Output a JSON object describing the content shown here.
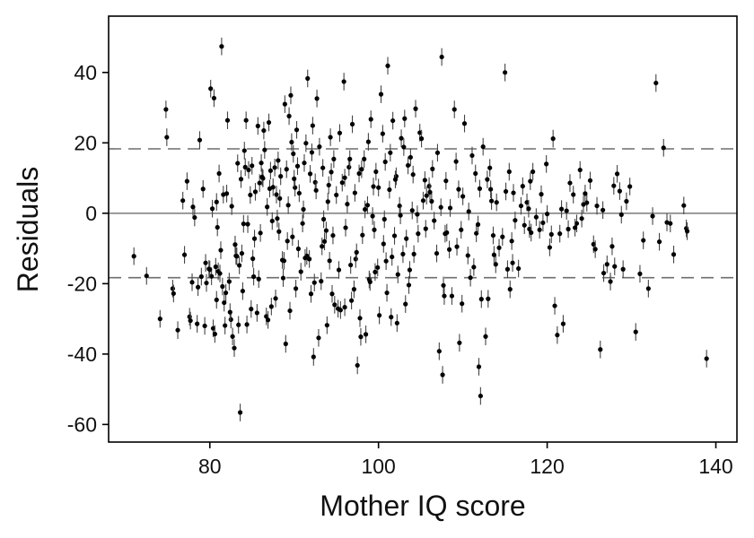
{
  "chart_data": {
    "type": "scatter",
    "title": "",
    "xlabel": "Mother IQ score",
    "ylabel": "Residuals",
    "xlim": [
      68,
      142.5
    ],
    "ylim": [
      -65,
      56
    ],
    "xticks": [
      "80",
      "100",
      "120",
      "140"
    ],
    "yticks": [
      "40",
      "20",
      "0",
      "-20",
      "-40",
      "-60"
    ],
    "reference_lines": {
      "solid": 0,
      "dashed": [
        18.3,
        -18.3
      ]
    },
    "grid": false,
    "legend": "none",
    "error_bars": "vertical, half-length about 2.5",
    "colors": {
      "points": "#000000",
      "axes": "#000000",
      "zero_line": "#7a7a7a",
      "dashed_lines": "#6e6e6e"
    },
    "points": [
      [
        71.0,
        -12.2
      ],
      [
        72.5,
        -17.8
      ],
      [
        74.1,
        -30.0
      ],
      [
        74.8,
        29.5
      ],
      [
        74.9,
        21.6
      ],
      [
        75.6,
        -21.4
      ],
      [
        75.7,
        -22.8
      ],
      [
        76.2,
        -33.2
      ],
      [
        76.8,
        3.6
      ],
      [
        77.0,
        -11.8
      ],
      [
        77.3,
        9.1
      ],
      [
        77.6,
        -29.4
      ],
      [
        77.7,
        -30.5
      ],
      [
        77.9,
        -19.6
      ],
      [
        78.0,
        1.8
      ],
      [
        78.2,
        -1.2
      ],
      [
        78.5,
        -31.4
      ],
      [
        78.8,
        20.8
      ],
      [
        79.2,
        6.9
      ],
      [
        79.4,
        -32.0
      ],
      [
        79.5,
        -14.1
      ],
      [
        79.6,
        -19.8
      ],
      [
        79.9,
        -15.8
      ],
      [
        80.1,
        35.4
      ],
      [
        80.2,
        -17.9
      ],
      [
        80.3,
        1.3
      ],
      [
        80.4,
        -32.7
      ],
      [
        80.5,
        32.7
      ],
      [
        80.6,
        -34.3
      ],
      [
        80.7,
        -15.2
      ],
      [
        80.8,
        3.2
      ],
      [
        80.9,
        -4.0
      ],
      [
        81.0,
        -16.5
      ],
      [
        81.1,
        11.3
      ],
      [
        81.2,
        -17.1
      ],
      [
        81.4,
        47.4
      ],
      [
        81.5,
        -20.8
      ],
      [
        81.6,
        5.3
      ],
      [
        81.8,
        -31.9
      ],
      [
        81.9,
        -22.6
      ],
      [
        82.1,
        26.4
      ],
      [
        82.3,
        -19.4
      ],
      [
        82.5,
        -30.2
      ],
      [
        82.6,
        2.0
      ],
      [
        82.7,
        -35.0
      ],
      [
        82.9,
        -38.3
      ],
      [
        83.0,
        -8.9
      ],
      [
        83.1,
        -12.1
      ],
      [
        83.3,
        14.2
      ],
      [
        83.4,
        -31.7
      ],
      [
        83.5,
        -14.8
      ],
      [
        83.6,
        -56.6
      ],
      [
        83.7,
        9.7
      ],
      [
        83.8,
        -11.4
      ],
      [
        84.0,
        -3.0
      ],
      [
        84.1,
        17.8
      ],
      [
        84.3,
        26.4
      ],
      [
        84.4,
        -31.6
      ],
      [
        84.6,
        12.3
      ],
      [
        84.8,
        5.2
      ],
      [
        85.0,
        13.5
      ],
      [
        85.1,
        -12.9
      ],
      [
        85.2,
        -18.0
      ],
      [
        85.4,
        6.1
      ],
      [
        85.6,
        -28.3
      ],
      [
        85.7,
        24.8
      ],
      [
        85.9,
        8.6
      ],
      [
        86.1,
        14.3
      ],
      [
        86.3,
        9.9
      ],
      [
        86.5,
        18.0
      ],
      [
        86.7,
        -29.3
      ],
      [
        86.8,
        1.8
      ],
      [
        87.0,
        25.8
      ],
      [
        87.1,
        7.0
      ],
      [
        87.2,
        12.1
      ],
      [
        87.3,
        -26.5
      ],
      [
        87.5,
        7.4
      ],
      [
        87.7,
        13.0
      ],
      [
        87.9,
        5.3
      ],
      [
        88.0,
        -1.5
      ],
      [
        88.2,
        -5.2
      ],
      [
        88.4,
        10.5
      ],
      [
        88.6,
        -13.3
      ],
      [
        88.7,
        -18.4
      ],
      [
        88.9,
        31.0
      ],
      [
        89.0,
        -37.1
      ],
      [
        89.1,
        12.5
      ],
      [
        89.3,
        2.3
      ],
      [
        89.4,
        27.6
      ],
      [
        89.6,
        33.5
      ],
      [
        89.8,
        -6.7
      ],
      [
        89.9,
        16.9
      ],
      [
        90.1,
        7.3
      ],
      [
        90.3,
        23.7
      ],
      [
        90.5,
        -10.1
      ],
      [
        90.6,
        5.7
      ],
      [
        90.8,
        -16.6
      ],
      [
        91.0,
        -2.9
      ],
      [
        91.2,
        14.3
      ],
      [
        91.4,
        19.9
      ],
      [
        91.5,
        -12.1
      ],
      [
        91.6,
        38.3
      ],
      [
        91.8,
        -13.0
      ],
      [
        92.0,
        -22.9
      ],
      [
        92.2,
        24.9
      ],
      [
        92.3,
        -40.8
      ],
      [
        92.5,
        8.8
      ],
      [
        92.7,
        32.6
      ],
      [
        92.9,
        -35.4
      ],
      [
        93.0,
        18.9
      ],
      [
        93.2,
        -19.3
      ],
      [
        93.4,
        12.9
      ],
      [
        93.6,
        -8.0
      ],
      [
        93.8,
        -4.9
      ],
      [
        94.0,
        3.3
      ],
      [
        94.2,
        -13.5
      ],
      [
        94.4,
        11.7
      ],
      [
        94.6,
        -6.3
      ],
      [
        94.8,
        -26.0
      ],
      [
        95.0,
        5.2
      ],
      [
        95.2,
        -27.1
      ],
      [
        95.4,
        22.8
      ],
      [
        95.5,
        -27.5
      ],
      [
        95.7,
        8.7
      ],
      [
        95.9,
        37.4
      ],
      [
        96.0,
        -26.7
      ],
      [
        96.3,
        2.6
      ],
      [
        96.5,
        13.1
      ],
      [
        96.7,
        -14.7
      ],
      [
        96.9,
        25.3
      ],
      [
        97.1,
        -21.6
      ],
      [
        97.3,
        -13.0
      ],
      [
        97.5,
        -43.2
      ],
      [
        97.7,
        11.3
      ],
      [
        97.9,
        -35.1
      ],
      [
        98.1,
        -6.2
      ],
      [
        98.3,
        15.4
      ],
      [
        98.5,
        -34.4
      ],
      [
        98.7,
        2.3
      ],
      [
        98.9,
        -18.8
      ],
      [
        99.1,
        26.7
      ],
      [
        99.3,
        -0.8
      ],
      [
        99.5,
        -4.7
      ],
      [
        99.7,
        11.8
      ],
      [
        99.9,
        -15.4
      ],
      [
        100.1,
        -29.0
      ],
      [
        100.3,
        33.8
      ],
      [
        100.5,
        22.6
      ],
      [
        100.7,
        -1.7
      ],
      [
        100.9,
        -13.6
      ],
      [
        101.1,
        41.9
      ],
      [
        101.3,
        6.7
      ],
      [
        101.5,
        -29.5
      ],
      [
        101.7,
        26.3
      ],
      [
        101.9,
        -6.4
      ],
      [
        102.1,
        10.5
      ],
      [
        102.3,
        -17.4
      ],
      [
        102.5,
        2.1
      ],
      [
        102.7,
        21.3
      ],
      [
        102.9,
        -11.6
      ],
      [
        103.1,
        26.9
      ],
      [
        103.3,
        -7.2
      ],
      [
        103.6,
        -20.4
      ],
      [
        103.8,
        15.9
      ],
      [
        104.0,
        0.8
      ],
      [
        104.2,
        -11.6
      ],
      [
        104.4,
        29.7
      ],
      [
        104.7,
        -5.8
      ],
      [
        104.9,
        22.9
      ],
      [
        105.3,
        3.6
      ],
      [
        105.7,
        5.0
      ],
      [
        106.0,
        7.7
      ],
      [
        106.3,
        3.4
      ],
      [
        106.6,
        -2.1
      ],
      [
        106.9,
        -11.4
      ],
      [
        107.2,
        -39.2
      ],
      [
        107.5,
        44.4
      ],
      [
        107.6,
        -45.9
      ],
      [
        107.8,
        -23.5
      ],
      [
        108.1,
        -5.5
      ],
      [
        108.4,
        -10.3
      ],
      [
        108.7,
        -23.5
      ],
      [
        109.0,
        29.5
      ],
      [
        109.3,
        -9.5
      ],
      [
        109.6,
        -36.8
      ],
      [
        109.9,
        -25.7
      ],
      [
        110.2,
        25.5
      ],
      [
        110.6,
        -12.0
      ],
      [
        110.9,
        -18.3
      ],
      [
        111.3,
        -15.3
      ],
      [
        111.6,
        -5.7
      ],
      [
        111.9,
        -43.6
      ],
      [
        112.1,
        -51.9
      ],
      [
        112.4,
        18.9
      ],
      [
        112.7,
        -35.0
      ],
      [
        113.0,
        -24.3
      ],
      [
        113.3,
        6.8
      ],
      [
        113.6,
        -6.3
      ],
      [
        113.9,
        -14.5
      ],
      [
        114.3,
        -9.8
      ],
      [
        114.7,
        -6.7
      ],
      [
        115.0,
        40.0
      ],
      [
        115.3,
        -15.9
      ],
      [
        115.6,
        -21.6
      ],
      [
        115.9,
        -14.1
      ],
      [
        116.2,
        -2.0
      ],
      [
        116.6,
        -15.7
      ],
      [
        116.9,
        2.1
      ],
      [
        117.3,
        -3.4
      ],
      [
        117.6,
        3.1
      ],
      [
        117.9,
        -4.5
      ],
      [
        118.3,
        11.8
      ],
      [
        118.7,
        -1.1
      ],
      [
        119.1,
        -4.7
      ],
      [
        119.5,
        -2.7
      ],
      [
        119.9,
        14.0
      ],
      [
        120.3,
        -9.7
      ],
      [
        120.7,
        21.2
      ],
      [
        120.9,
        -26.3
      ],
      [
        121.2,
        -34.6
      ],
      [
        121.5,
        -5.8
      ],
      [
        121.9,
        -31.4
      ],
      [
        122.3,
        0.7
      ],
      [
        122.7,
        8.6
      ],
      [
        123.1,
        5.3
      ],
      [
        123.5,
        -2.9
      ],
      [
        123.9,
        12.3
      ],
      [
        124.3,
        2.5
      ],
      [
        124.7,
        3.0
      ],
      [
        125.1,
        9.3
      ],
      [
        125.5,
        -8.8
      ],
      [
        125.9,
        2.1
      ],
      [
        126.3,
        -38.7
      ],
      [
        126.7,
        -17.0
      ],
      [
        127.1,
        -14.5
      ],
      [
        127.5,
        -19.4
      ],
      [
        127.9,
        7.8
      ],
      [
        128.3,
        11.2
      ],
      [
        128.6,
        6.3
      ],
      [
        129.0,
        -15.9
      ],
      [
        129.4,
        3.4
      ],
      [
        129.8,
        7.6
      ],
      [
        130.5,
        -33.7
      ],
      [
        131.0,
        -17.2
      ],
      [
        131.4,
        -7.7
      ],
      [
        132.0,
        -21.4
      ],
      [
        132.5,
        -0.8
      ],
      [
        132.9,
        37.0
      ],
      [
        133.3,
        -8.1
      ],
      [
        133.8,
        18.6
      ],
      [
        134.2,
        -2.6
      ],
      [
        134.6,
        -2.9
      ],
      [
        135.0,
        -11.7
      ],
      [
        136.2,
        2.2
      ],
      [
        136.5,
        -4.3
      ],
      [
        136.6,
        -5.1
      ],
      [
        138.9,
        -41.3
      ],
      [
        84.5,
        -3.1
      ],
      [
        86.0,
        -5.6
      ],
      [
        88.8,
        -13.5
      ],
      [
        91.1,
        1.1
      ],
      [
        93.5,
        -1.7
      ],
      [
        96.1,
        -4.1
      ],
      [
        98.4,
        1.1
      ],
      [
        100.6,
        -8.7
      ],
      [
        102.6,
        -0.6
      ],
      [
        104.6,
        -0.3
      ],
      [
        106.4,
        12.6
      ],
      [
        108.5,
        1.5
      ],
      [
        110.7,
        0.5
      ],
      [
        112.9,
        9.6
      ],
      [
        115.1,
        6.2
      ],
      [
        117.1,
        7.7
      ],
      [
        119.3,
        5.4
      ],
      [
        121.7,
        1.2
      ],
      [
        124.1,
        -1.5
      ],
      [
        126.6,
        0.9
      ],
      [
        128.8,
        -0.4
      ],
      [
        82.0,
        5.6
      ],
      [
        84.2,
        13.1
      ],
      [
        86.4,
        23.5
      ],
      [
        88.3,
        4.2
      ],
      [
        90.4,
        13.4
      ],
      [
        92.6,
        6.5
      ],
      [
        94.7,
        15.4
      ],
      [
        97.2,
        5.8
      ],
      [
        99.4,
        7.6
      ],
      [
        101.4,
        17.2
      ],
      [
        103.5,
        13.6
      ],
      [
        105.5,
        9.4
      ],
      [
        107.4,
        1.7
      ],
      [
        109.5,
        6.8
      ],
      [
        111.5,
        11.3
      ],
      [
        113.4,
        3.5
      ],
      [
        115.5,
        11.8
      ],
      [
        117.8,
        1.3
      ],
      [
        120.0,
        -0.2
      ],
      [
        122.5,
        -4.5
      ],
      [
        124.5,
        5.6
      ],
      [
        127.7,
        -9.4
      ],
      [
        80.0,
        -16.0
      ],
      [
        81.3,
        -10.5
      ],
      [
        83.2,
        -12.2
      ],
      [
        85.3,
        -7.2
      ],
      [
        87.4,
        -2.2
      ],
      [
        89.2,
        -7.9
      ],
      [
        91.3,
        -12.7
      ],
      [
        93.3,
        -9.4
      ],
      [
        95.3,
        -16.1
      ],
      [
        97.4,
        -11.1
      ],
      [
        99.6,
        -16.7
      ],
      [
        101.6,
        -12.4
      ],
      [
        103.7,
        -16.1
      ],
      [
        105.6,
        -4.4
      ],
      [
        107.9,
        -5.8
      ],
      [
        109.8,
        -4.7
      ],
      [
        111.8,
        -3.2
      ],
      [
        113.7,
        -11.8
      ],
      [
        115.8,
        -7.9
      ],
      [
        118.1,
        -5.5
      ],
      [
        120.5,
        -6.0
      ],
      [
        123.3,
        -4.1
      ],
      [
        125.7,
        -10.2
      ],
      [
        128.0,
        -15.1
      ],
      [
        89.7,
        20.2
      ],
      [
        92.1,
        17.3
      ],
      [
        94.3,
        21.6
      ],
      [
        96.6,
        15.4
      ],
      [
        98.8,
        20.3
      ],
      [
        100.8,
        14.6
      ],
      [
        103.0,
        18.8
      ],
      [
        105.1,
        21.2
      ],
      [
        107.0,
        17.2
      ],
      [
        109.2,
        14.7
      ],
      [
        111.1,
        16.4
      ],
      [
        113.2,
        12.9
      ],
      [
        86.2,
        10.3
      ],
      [
        88.1,
        15.0
      ],
      [
        90.0,
        9.8
      ],
      [
        91.9,
        11.2
      ],
      [
        94.1,
        8.0
      ],
      [
        96.0,
        10.1
      ],
      [
        98.0,
        12.5
      ],
      [
        100.0,
        7.3
      ],
      [
        102.0,
        9.6
      ],
      [
        104.1,
        11.0
      ],
      [
        106.1,
        6.0
      ],
      [
        108.0,
        9.2
      ],
      [
        110.0,
        4.8
      ],
      [
        112.0,
        7.0
      ],
      [
        114.0,
        3.1
      ],
      [
        116.0,
        5.8
      ],
      [
        118.0,
        9.1
      ],
      [
        81.7,
        -25.4
      ],
      [
        83.9,
        -22.1
      ],
      [
        85.8,
        -18.7
      ],
      [
        87.8,
        -24.2
      ],
      [
        90.2,
        -21.4
      ],
      [
        92.4,
        -19.7
      ],
      [
        94.5,
        -22.9
      ],
      [
        96.8,
        -24.8
      ],
      [
        99.0,
        -19.5
      ],
      [
        101.0,
        -22.6
      ],
      [
        103.2,
        -25.8
      ],
      [
        79.0,
        -18.0
      ],
      [
        78.6,
        -21.0
      ],
      [
        80.8,
        -24.6
      ],
      [
        82.4,
        -28.1
      ],
      [
        84.9,
        -27.2
      ],
      [
        86.9,
        -30.3
      ],
      [
        89.5,
        -27.7
      ],
      [
        93.9,
        -31.8
      ],
      [
        97.8,
        -29.8
      ],
      [
        102.2,
        -31.2
      ],
      [
        107.7,
        -20.5
      ],
      [
        112.2,
        -24.4
      ]
    ]
  }
}
